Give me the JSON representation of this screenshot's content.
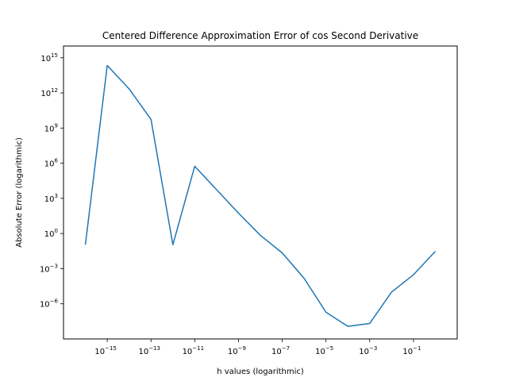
{
  "chart_data": {
    "type": "line",
    "title": "Centered Difference Approximation Error of cos Second Derivative",
    "xlabel": "h values (logarithmic)",
    "ylabel": "Absolute Error (logarithmic)",
    "x_scale": "log",
    "y_scale": "log",
    "xlim": [
      1e-17,
      10
    ],
    "ylim": [
      1e-09,
      1e+16
    ],
    "grid": false,
    "legend": "none",
    "x_ticks": [
      {
        "base": "10",
        "exp": "−15",
        "value": 1e-15
      },
      {
        "base": "10",
        "exp": "−13",
        "value": 1e-13
      },
      {
        "base": "10",
        "exp": "−11",
        "value": 1e-11
      },
      {
        "base": "10",
        "exp": "−9",
        "value": 1e-09
      },
      {
        "base": "10",
        "exp": "−7",
        "value": 1e-07
      },
      {
        "base": "10",
        "exp": "−5",
        "value": 1e-05
      },
      {
        "base": "10",
        "exp": "−3",
        "value": 0.001
      },
      {
        "base": "10",
        "exp": "−1",
        "value": 0.1
      }
    ],
    "y_ticks": [
      {
        "base": "10",
        "exp": "15",
        "value": 1000000000000000.0
      },
      {
        "base": "10",
        "exp": "12",
        "value": 1000000000000.0
      },
      {
        "base": "10",
        "exp": "9",
        "value": 1000000000.0
      },
      {
        "base": "10",
        "exp": "6",
        "value": 1000000.0
      },
      {
        "base": "10",
        "exp": "3",
        "value": 1000.0
      },
      {
        "base": "10",
        "exp": "0",
        "value": 1
      },
      {
        "base": "10",
        "exp": "−3",
        "value": 0.001
      },
      {
        "base": "10",
        "exp": "−6",
        "value": 1e-06
      }
    ],
    "series": [
      {
        "color": "#1f77b4",
        "x": [
          1e-16,
          1e-15,
          1e-14,
          1e-13,
          1e-12,
          1e-11,
          1e-10,
          1e-09,
          1e-08,
          1e-07,
          1e-06,
          1e-05,
          0.0001,
          0.001,
          0.01,
          0.1,
          1
        ],
        "y": [
          0.11,
          220000000000000.0,
          2200000000000.0,
          5500000000.0,
          0.11,
          550000.0,
          5500.0,
          55,
          0.7,
          0.022,
          0.00015,
          1.9e-07,
          1.2e-08,
          2.1e-08,
          1e-05,
          0.0003,
          0.03
        ]
      }
    ]
  }
}
